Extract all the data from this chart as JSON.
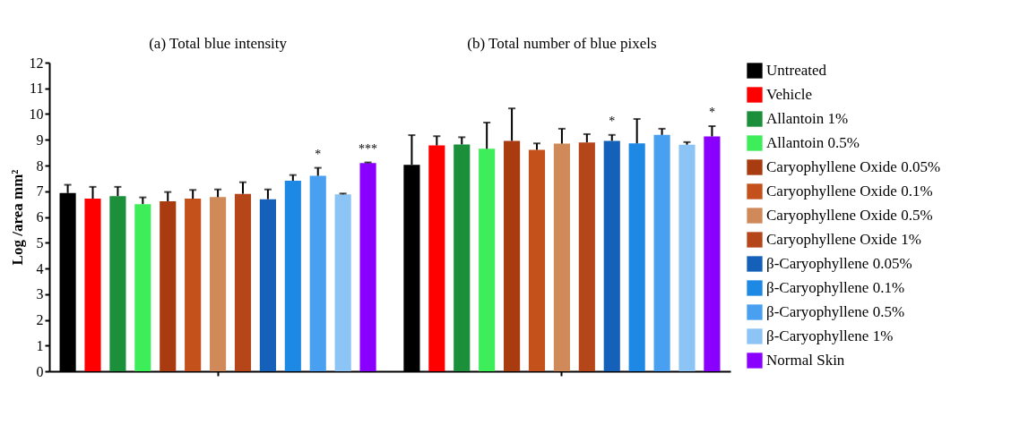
{
  "chart_data": {
    "type": "bar",
    "categories": [
      null,
      null
    ],
    "ylabel": "Log /area mm²",
    "ylim": [
      0,
      12
    ],
    "yticks": [
      0,
      1,
      2,
      3,
      4,
      5,
      6,
      7,
      8,
      9,
      10,
      11,
      12
    ],
    "tick_labels": "y",
    "grid": false,
    "legend": "right",
    "annotations": [
      "(a) Total blue intensity",
      "(b) Total number of blue pixels"
    ],
    "series": [
      {
        "name": "Untreated",
        "color": "#000000",
        "values": [
          6.93,
          8.03
        ],
        "errors": [
          [
            6.93,
            7.25
          ],
          [
            8.03,
            9.18
          ]
        ]
      },
      {
        "name": "Vehicle",
        "color": "#ff0000",
        "values": [
          6.71,
          8.78
        ],
        "errors": [
          [
            6.71,
            7.17
          ],
          [
            8.78,
            9.14
          ]
        ]
      },
      {
        "name": "Allantoin 1%",
        "color": "#1b8f3a",
        "values": [
          6.81,
          8.82
        ],
        "errors": [
          [
            6.81,
            7.17
          ],
          [
            8.82,
            9.1
          ]
        ]
      },
      {
        "name": "Allantoin 0.5%",
        "color": "#3ded5a",
        "values": [
          6.5,
          8.65
        ],
        "errors": [
          [
            6.5,
            6.76
          ],
          [
            8.65,
            9.67
          ]
        ]
      },
      {
        "name": "Caryophyllene Oxide 0.05%",
        "color": "#a83c10",
        "values": [
          6.61,
          8.96
        ],
        "errors": [
          [
            6.61,
            6.97
          ],
          [
            8.96,
            10.22
          ]
        ]
      },
      {
        "name": "Caryophyllene Oxide 0.1%",
        "color": "#c4501c",
        "values": [
          6.71,
          8.61
        ],
        "errors": [
          [
            6.71,
            7.05
          ],
          [
            8.61,
            8.86
          ]
        ]
      },
      {
        "name": "Caryophyllene Oxide 0.5%",
        "color": "#d08a5a",
        "values": [
          6.77,
          8.85
        ],
        "errors": [
          [
            6.77,
            7.07
          ],
          [
            8.85,
            9.43
          ]
        ]
      },
      {
        "name": "Caryophyllene Oxide 1%",
        "color": "#b5461a",
        "values": [
          6.9,
          8.9
        ],
        "errors": [
          [
            6.9,
            7.35
          ],
          [
            8.9,
            9.22
          ]
        ]
      },
      {
        "name": "β-Caryophyllene  0.05%",
        "color": "#1560b8",
        "values": [
          6.69,
          8.96
        ],
        "errors": [
          [
            6.69,
            7.07
          ],
          [
            8.96,
            9.19
          ]
        ],
        "value_labels": [
          null,
          "*"
        ]
      },
      {
        "name": "β-Caryophyllene  0.1%",
        "color": "#1e88e5",
        "values": [
          7.41,
          8.86
        ],
        "errors": [
          [
            7.41,
            7.63
          ],
          [
            8.86,
            9.81
          ]
        ]
      },
      {
        "name": "β-Caryophyllene  0.5%",
        "color": "#4aa0f0",
        "values": [
          7.6,
          9.19
        ],
        "errors": [
          [
            7.6,
            7.91
          ],
          [
            9.19,
            9.43
          ]
        ],
        "value_labels": [
          "*",
          null
        ]
      },
      {
        "name": "β-Caryophyllene  1%",
        "color": "#8cc4f5",
        "values": [
          6.88,
          8.81
        ],
        "errors": [
          [
            6.88,
            6.91
          ],
          [
            8.81,
            8.91
          ]
        ]
      },
      {
        "name": "Normal Skin",
        "color": "#8a00ff",
        "values": [
          8.1,
          9.13
        ],
        "errors": [
          [
            8.1,
            8.12
          ],
          [
            9.13,
            9.53
          ]
        ],
        "value_labels": [
          "***",
          "*"
        ]
      }
    ]
  }
}
